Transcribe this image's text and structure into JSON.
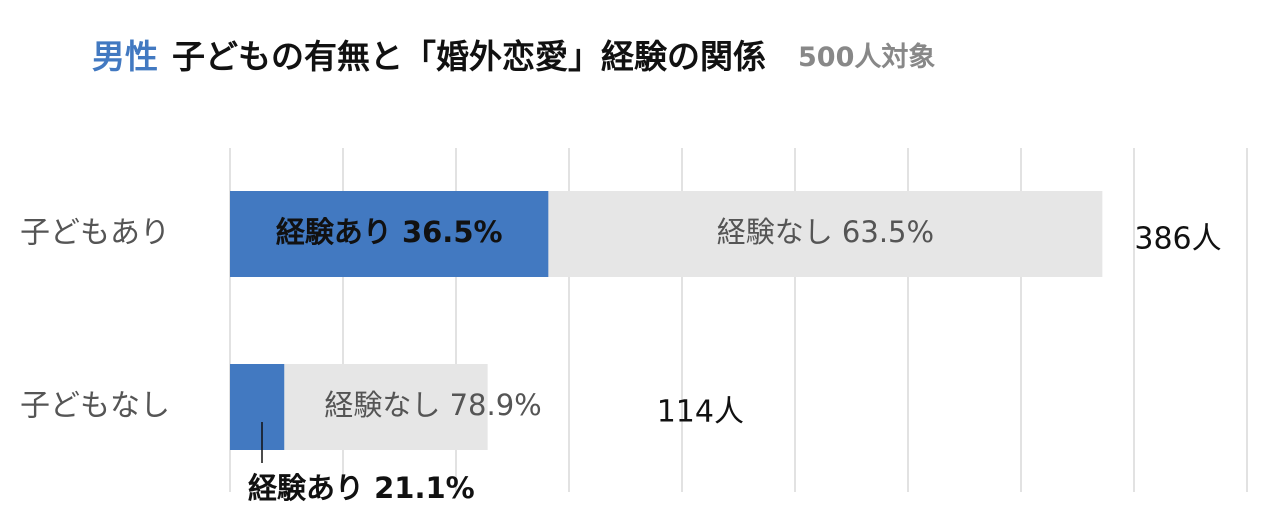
{
  "chart_data": {
    "type": "bar",
    "orientation": "horizontal",
    "title_prefix": "男性",
    "title": "子どもの有無と「婚外恋愛」経験の関係",
    "subtitle": "500人対象",
    "categories": [
      "子どもあり",
      "子どもなし"
    ],
    "series": [
      {
        "name": "経験あり",
        "color": "#4279c1",
        "values": [
          36.5,
          21.1
        ],
        "value_labels": [
          "経験あり 36.5%",
          "経験あり 21.1%"
        ]
      },
      {
        "name": "経験なし",
        "color": "#e6e6e6",
        "values": [
          63.5,
          78.9
        ],
        "value_labels": [
          "経験なし 63.5%",
          "経験なし 78.9%"
        ]
      }
    ],
    "totals": [
      386,
      114
    ],
    "total_labels": [
      "386人",
      "114人"
    ],
    "xlim": [
      0,
      450
    ],
    "xticks": [
      0,
      50,
      100,
      150,
      200,
      250,
      300,
      350,
      400,
      450
    ],
    "grid": true
  }
}
